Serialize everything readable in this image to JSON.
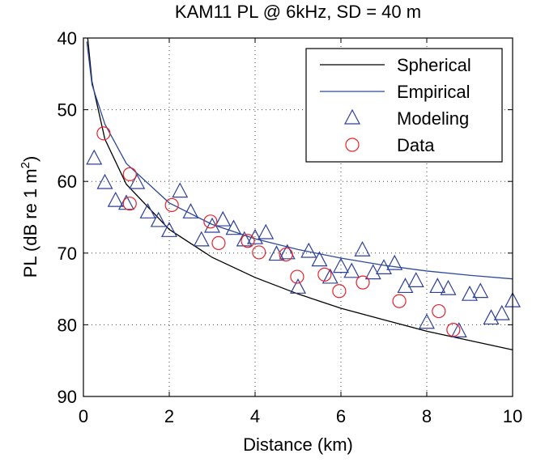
{
  "chart_data": {
    "type": "line",
    "title": "KAM11 PL @ 6kHz, SD = 40 m",
    "xlabel": "Distance (km)",
    "ylabel": [
      "PL (dB re 1 m",
      "2",
      ")"
    ],
    "xlim": [
      0,
      10
    ],
    "xticks": [
      0,
      2,
      4,
      6,
      8,
      10
    ],
    "ylim": [
      40,
      90
    ],
    "yticks": [
      40,
      50,
      60,
      70,
      80,
      90
    ],
    "y_reversed": true,
    "grid": true,
    "legend": "upper right",
    "series": [
      {
        "name": "Spherical",
        "color": "#000000",
        "style": "line",
        "x": [
          0.1,
          0.2,
          0.5,
          1,
          2,
          3,
          4,
          5,
          6,
          7,
          8,
          9,
          10
        ],
        "values": [
          40.0,
          46.1,
          54.1,
          60.4,
          66.7,
          70.6,
          73.4,
          75.7,
          77.7,
          79.3,
          80.9,
          82.2,
          83.5
        ]
      },
      {
        "name": "Empirical",
        "color": "#2e4a9a",
        "style": "line",
        "x": [
          0.08,
          0.2,
          0.5,
          1,
          2,
          3,
          4,
          5,
          6,
          7,
          8,
          9,
          10
        ],
        "values": [
          40.5,
          46.5,
          52.0,
          57.5,
          63.0,
          66.0,
          68.0,
          69.5,
          70.7,
          71.7,
          72.5,
          73.1,
          73.6
        ]
      },
      {
        "name": "Modeling",
        "color": "#2e3f99",
        "style": "triangle",
        "x": [
          0.25,
          0.5,
          0.75,
          1,
          1.25,
          1.5,
          1.75,
          2,
          2.25,
          2.5,
          2.75,
          3,
          3.25,
          3.5,
          3.75,
          4,
          4.25,
          4.5,
          4.75,
          5,
          5.25,
          5.5,
          5.75,
          6,
          6.25,
          6.5,
          6.75,
          7,
          7.25,
          7.5,
          7.75,
          8,
          8.25,
          8.5,
          8.75,
          9,
          9.25,
          9.5,
          9.75,
          10
        ],
        "values": [
          56.8,
          60.2,
          62.7,
          63.1,
          60.2,
          64.3,
          65.5,
          66.9,
          61.4,
          64.3,
          68.2,
          66.3,
          65.4,
          66.6,
          68.2,
          67.9,
          67.2,
          70.2,
          70.0,
          74.8,
          69.8,
          71.0,
          73.4,
          71.9,
          72.6,
          69.6,
          72.8,
          72.1,
          71.5,
          74.7,
          73.9,
          79.7,
          74.7,
          75.0,
          80.9,
          75.8,
          75.4,
          79.1,
          78.5,
          76.7
        ]
      },
      {
        "name": "Data",
        "color": "#e8202a",
        "style": "circle",
        "x": [
          0.47,
          1.08,
          1.08,
          2.06,
          2.96,
          3.15,
          3.83,
          4.09,
          4.72,
          4.98,
          5.62,
          5.96,
          6.51,
          7.36,
          8.28,
          8.62
        ],
        "values": [
          53.3,
          59.0,
          63.1,
          63.3,
          65.6,
          68.6,
          68.3,
          69.9,
          70.2,
          73.3,
          73.0,
          75.3,
          74.1,
          76.7,
          78.1,
          80.7
        ]
      }
    ]
  }
}
